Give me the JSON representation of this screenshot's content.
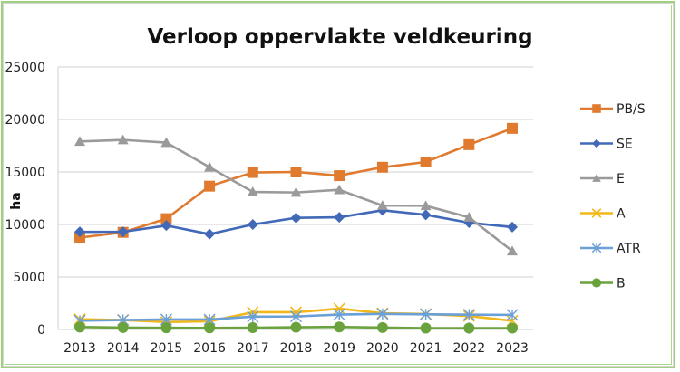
{
  "chart_data": {
    "type": "line",
    "title": "Verloop oppervlakte veldkeuring",
    "xlabel": "",
    "ylabel": "ha",
    "categories": [
      "2013",
      "2014",
      "2015",
      "2016",
      "2017",
      "2018",
      "2019",
      "2020",
      "2021",
      "2022",
      "2023"
    ],
    "ylim": [
      0,
      25000
    ],
    "yticks": [
      0,
      5000,
      10000,
      15000,
      20000,
      25000
    ],
    "ytick_labels": [
      "0",
      "5000",
      "10000",
      "15000",
      "20000",
      "25000"
    ],
    "grid": true,
    "legend_position": "right",
    "series": [
      {
        "name": "PB/S",
        "color": "#e07a2e",
        "marker": "square",
        "values": [
          8750,
          9250,
          10550,
          13650,
          14950,
          15000,
          14650,
          15450,
          15950,
          17600,
          19150
        ]
      },
      {
        "name": "SE",
        "color": "#4269b8",
        "marker": "diamond",
        "values": [
          9300,
          9300,
          9900,
          9080,
          10000,
          10630,
          10680,
          11350,
          10920,
          10170,
          9750
        ]
      },
      {
        "name": "E",
        "color": "#9a9a9a",
        "marker": "triangle",
        "values": [
          17900,
          18050,
          17800,
          15450,
          13100,
          13050,
          13300,
          11800,
          11780,
          10680,
          7470
        ]
      },
      {
        "name": "A",
        "color": "#f2b81a",
        "marker": "x",
        "values": [
          980,
          900,
          700,
          780,
          1640,
          1640,
          1980,
          1550,
          1470,
          1280,
          830
        ]
      },
      {
        "name": "ATR",
        "color": "#6a9fd8",
        "marker": "star",
        "values": [
          830,
          900,
          950,
          950,
          1220,
          1240,
          1420,
          1480,
          1440,
          1410,
          1390
        ]
      },
      {
        "name": "B",
        "color": "#6aa33e",
        "marker": "circle",
        "values": [
          230,
          180,
          160,
          150,
          170,
          210,
          240,
          180,
          130,
          130,
          130
        ]
      }
    ]
  }
}
